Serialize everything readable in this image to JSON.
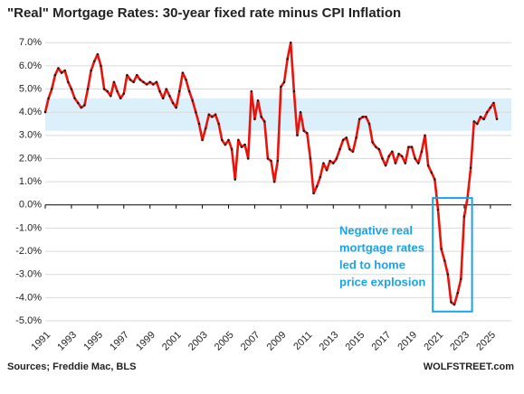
{
  "chart_data": {
    "type": "line",
    "title": "\"Real\" Mortgage Rates: 30-year fixed rate minus CPI Inflation",
    "source": "Sources; Freddie Mac, BLS",
    "watermark": "WOLFSTREET.com",
    "annotation": [
      "Negative real",
      "mortgage rates",
      "led to home",
      "price explosion"
    ],
    "annotation_box": {
      "x": [
        2020.6,
        2023.6
      ],
      "y": [
        -4.6,
        0.3
      ],
      "color": "#1aa3e8"
    },
    "band": {
      "y": [
        3.2,
        4.6
      ],
      "color": "#dcf0fb"
    },
    "xlim": [
      1991,
      2026.6
    ],
    "xticks": [
      1991,
      1993,
      1995,
      1997,
      1999,
      2001,
      2003,
      2005,
      2007,
      2009,
      2011,
      2013,
      2015,
      2017,
      2019,
      2021,
      2023,
      2025
    ],
    "ylim": [
      -5,
      7.4
    ],
    "yticks": [
      {
        "value": -5,
        "label": "-5.0%"
      },
      {
        "value": -4,
        "label": "-4.0%"
      },
      {
        "value": -3,
        "label": "-3.0%"
      },
      {
        "value": -2,
        "label": "-2.0%"
      },
      {
        "value": -1,
        "label": "-1.0%"
      },
      {
        "value": 0,
        "label": "0.0%"
      },
      {
        "value": 1,
        "label": "1.0%"
      },
      {
        "value": 2,
        "label": "2.0%"
      },
      {
        "value": 3,
        "label": "3.0%"
      },
      {
        "value": 4,
        "label": "4.0%"
      },
      {
        "value": 5,
        "label": "5.0%"
      },
      {
        "value": 6,
        "label": "6.0%"
      },
      {
        "value": 7,
        "label": "7.0%"
      }
    ],
    "grid": true,
    "color": "#e8140c",
    "marker_color": "#111",
    "x": [
      1991,
      1991.25,
      1991.5,
      1991.75,
      1992,
      1992.25,
      1992.5,
      1992.75,
      1993,
      1993.25,
      1993.5,
      1993.75,
      1994,
      1994.25,
      1994.5,
      1994.75,
      1995,
      1995.25,
      1995.5,
      1995.75,
      1996,
      1996.25,
      1996.5,
      1996.75,
      1997,
      1997.25,
      1997.5,
      1997.75,
      1998,
      1998.25,
      1998.5,
      1998.75,
      1999,
      1999.25,
      1999.5,
      1999.75,
      2000,
      2000.25,
      2000.5,
      2000.75,
      2001,
      2001.25,
      2001.5,
      2001.75,
      2002,
      2002.25,
      2002.5,
      2002.75,
      2003,
      2003.25,
      2003.5,
      2003.75,
      2004,
      2004.25,
      2004.5,
      2004.75,
      2005,
      2005.25,
      2005.5,
      2005.75,
      2006,
      2006.25,
      2006.5,
      2006.75,
      2007,
      2007.25,
      2007.5,
      2007.75,
      2008,
      2008.25,
      2008.5,
      2008.75,
      2009,
      2009.25,
      2009.5,
      2009.75,
      2010,
      2010.25,
      2010.5,
      2010.75,
      2011,
      2011.25,
      2011.5,
      2011.75,
      2012,
      2012.25,
      2012.5,
      2012.75,
      2013,
      2013.25,
      2013.5,
      2013.75,
      2014,
      2014.25,
      2014.5,
      2014.75,
      2015,
      2015.25,
      2015.5,
      2015.75,
      2016,
      2016.25,
      2016.5,
      2016.75,
      2017,
      2017.25,
      2017.5,
      2017.75,
      2018,
      2018.25,
      2018.5,
      2018.75,
      2019,
      2019.25,
      2019.5,
      2019.75,
      2020,
      2020.25,
      2020.5,
      2020.75,
      2021,
      2021.25,
      2021.5,
      2021.75,
      2022,
      2022.25,
      2022.5,
      2022.75,
      2023,
      2023.25,
      2023.5,
      2023.75,
      2024,
      2024.25,
      2024.5,
      2024.75,
      2025,
      2025.25,
      2025.5
    ],
    "values": [
      4.0,
      4.6,
      5.0,
      5.6,
      5.9,
      5.7,
      5.8,
      5.3,
      5.0,
      4.6,
      4.4,
      4.2,
      4.3,
      5.0,
      5.8,
      6.2,
      6.5,
      6.0,
      5.0,
      4.9,
      4.7,
      5.3,
      4.9,
      4.6,
      4.8,
      5.6,
      5.4,
      5.3,
      5.6,
      5.4,
      5.3,
      5.2,
      5.3,
      5.2,
      5.3,
      4.9,
      4.6,
      5.0,
      4.7,
      4.4,
      4.2,
      4.9,
      5.7,
      5.4,
      4.9,
      4.5,
      4.0,
      3.5,
      2.8,
      3.3,
      3.9,
      3.8,
      3.9,
      3.5,
      2.8,
      2.6,
      2.8,
      2.4,
      1.1,
      2.8,
      2.5,
      2.6,
      2.0,
      4.9,
      3.7,
      4.5,
      3.8,
      3.6,
      2.0,
      1.9,
      1.0,
      1.9,
      5.1,
      5.3,
      6.3,
      7.0,
      4.9,
      3.0,
      4.0,
      3.2,
      3.1,
      2.0,
      0.5,
      0.8,
      1.2,
      1.8,
      1.5,
      1.9,
      1.8,
      2.0,
      2.4,
      2.8,
      2.9,
      2.4,
      2.3,
      2.9,
      3.7,
      3.8,
      3.8,
      3.5,
      2.7,
      2.5,
      2.4,
      2.0,
      1.7,
      2.1,
      2.3,
      1.8,
      2.2,
      2.1,
      1.8,
      2.5,
      2.5,
      2.0,
      1.8,
      2.3,
      3.0,
      1.7,
      1.4,
      1.1,
      -0.2,
      -1.9,
      -2.4,
      -3.0,
      -4.2,
      -4.3,
      -3.8,
      -3.2,
      -0.5,
      0.3,
      1.6,
      3.6,
      3.5,
      3.8,
      3.7,
      4.0,
      4.2,
      4.4,
      3.7
    ]
  }
}
